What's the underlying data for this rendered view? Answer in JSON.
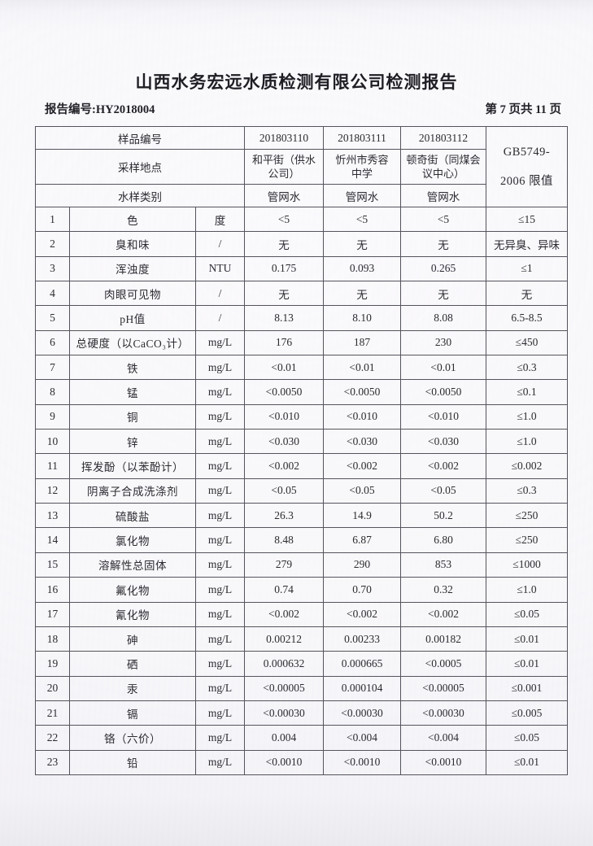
{
  "page": {
    "title": "山西水务宏远水质检测有限公司检测报告",
    "report_no": "报告编号:HY2018004",
    "page_indicator": "第 7 页共 11 页"
  },
  "table": {
    "header": {
      "sample_id_label": "样品编号",
      "location_label": "采样地点",
      "type_label": "水样类别",
      "sample_ids": [
        "201803110",
        "201803111",
        "201803112"
      ],
      "locations": [
        "和平街（供水\n公司）",
        "忻州市秀容\n中学",
        "顿奇街（同煤会\n议中心）"
      ],
      "types": [
        "管网水",
        "管网水",
        "管网水"
      ],
      "limit_header": "GB5749-\n2006 限值"
    },
    "rows": [
      {
        "no": "1",
        "name": "色",
        "unit": "度",
        "v1": "<5",
        "v2": "<5",
        "v3": "<5",
        "limit": "≤15"
      },
      {
        "no": "2",
        "name": "臭和味",
        "unit": "/",
        "v1": "无",
        "v2": "无",
        "v3": "无",
        "limit": "无异臭、异味"
      },
      {
        "no": "3",
        "name": "浑浊度",
        "unit": "NTU",
        "v1": "0.175",
        "v2": "0.093",
        "v3": "0.265",
        "limit": "≤1"
      },
      {
        "no": "4",
        "name": "肉眼可见物",
        "unit": "/",
        "v1": "无",
        "v2": "无",
        "v3": "无",
        "limit": "无"
      },
      {
        "no": "5",
        "name": "pH值",
        "unit": "/",
        "v1": "8.13",
        "v2": "8.10",
        "v3": "8.08",
        "limit": "6.5-8.5"
      },
      {
        "no": "6",
        "name": "总硬度（以CaCO₃计）",
        "unit": "mg/L",
        "v1": "176",
        "v2": "187",
        "v3": "230",
        "limit": "≤450"
      },
      {
        "no": "7",
        "name": "铁",
        "unit": "mg/L",
        "v1": "<0.01",
        "v2": "<0.01",
        "v3": "<0.01",
        "limit": "≤0.3"
      },
      {
        "no": "8",
        "name": "锰",
        "unit": "mg/L",
        "v1": "<0.0050",
        "v2": "<0.0050",
        "v3": "<0.0050",
        "limit": "≤0.1"
      },
      {
        "no": "9",
        "name": "铜",
        "unit": "mg/L",
        "v1": "<0.010",
        "v2": "<0.010",
        "v3": "<0.010",
        "limit": "≤1.0"
      },
      {
        "no": "10",
        "name": "锌",
        "unit": "mg/L",
        "v1": "<0.030",
        "v2": "<0.030",
        "v3": "<0.030",
        "limit": "≤1.0"
      },
      {
        "no": "11",
        "name": "挥发酚（以苯酚计）",
        "unit": "mg/L",
        "v1": "<0.002",
        "v2": "<0.002",
        "v3": "<0.002",
        "limit": "≤0.002"
      },
      {
        "no": "12",
        "name": "阴离子合成洗涤剂",
        "unit": "mg/L",
        "v1": "<0.05",
        "v2": "<0.05",
        "v3": "<0.05",
        "limit": "≤0.3"
      },
      {
        "no": "13",
        "name": "硫酸盐",
        "unit": "mg/L",
        "v1": "26.3",
        "v2": "14.9",
        "v3": "50.2",
        "limit": "≤250"
      },
      {
        "no": "14",
        "name": "氯化物",
        "unit": "mg/L",
        "v1": "8.48",
        "v2": "6.87",
        "v3": "6.80",
        "limit": "≤250"
      },
      {
        "no": "15",
        "name": "溶解性总固体",
        "unit": "mg/L",
        "v1": "279",
        "v2": "290",
        "v3": "853",
        "limit": "≤1000"
      },
      {
        "no": "16",
        "name": "氟化物",
        "unit": "mg/L",
        "v1": "0.74",
        "v2": "0.70",
        "v3": "0.32",
        "limit": "≤1.0"
      },
      {
        "no": "17",
        "name": "氰化物",
        "unit": "mg/L",
        "v1": "<0.002",
        "v2": "<0.002",
        "v3": "<0.002",
        "limit": "≤0.05"
      },
      {
        "no": "18",
        "name": "砷",
        "unit": "mg/L",
        "v1": "0.00212",
        "v2": "0.00233",
        "v3": "0.00182",
        "limit": "≤0.01"
      },
      {
        "no": "19",
        "name": "硒",
        "unit": "mg/L",
        "v1": "0.000632",
        "v2": "0.000665",
        "v3": "<0.0005",
        "limit": "≤0.01"
      },
      {
        "no": "20",
        "name": "汞",
        "unit": "mg/L",
        "v1": "<0.00005",
        "v2": "0.000104",
        "v3": "<0.00005",
        "limit": "≤0.001"
      },
      {
        "no": "21",
        "name": "镉",
        "unit": "mg/L",
        "v1": "<0.00030",
        "v2": "<0.00030",
        "v3": "<0.00030",
        "limit": "≤0.005"
      },
      {
        "no": "22",
        "name": "铬（六价）",
        "unit": "mg/L",
        "v1": "0.004",
        "v2": "<0.004",
        "v3": "<0.004",
        "limit": "≤0.05"
      },
      {
        "no": "23",
        "name": "铅",
        "unit": "mg/L",
        "v1": "<0.0010",
        "v2": "<0.0010",
        "v3": "<0.0010",
        "limit": "≤0.01"
      }
    ]
  }
}
